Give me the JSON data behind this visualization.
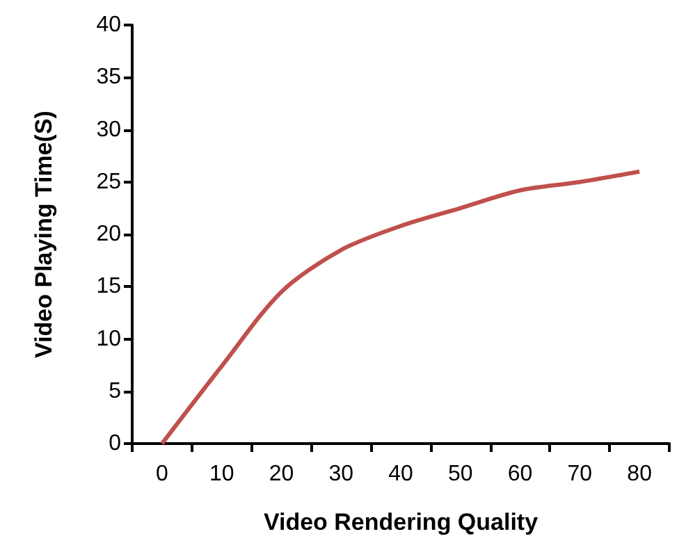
{
  "chart_data": {
    "type": "line",
    "xlabel": "Video Rendering Quality",
    "ylabel": "Video Playing Time(S)",
    "categories": [
      "0",
      "10",
      "20",
      "30",
      "40",
      "50",
      "60",
      "70",
      "80"
    ],
    "series": [
      {
        "color": "#c0504d",
        "values": [
          0,
          7.4,
          14.5,
          18.5,
          20.8,
          22.5,
          24.2,
          25,
          26
        ]
      }
    ],
    "ylim": [
      0,
      40
    ],
    "yticks": [
      0,
      5,
      10,
      15,
      20,
      25,
      30,
      35,
      40
    ],
    "grid": false,
    "marker": "none",
    "line_style": "solid"
  }
}
